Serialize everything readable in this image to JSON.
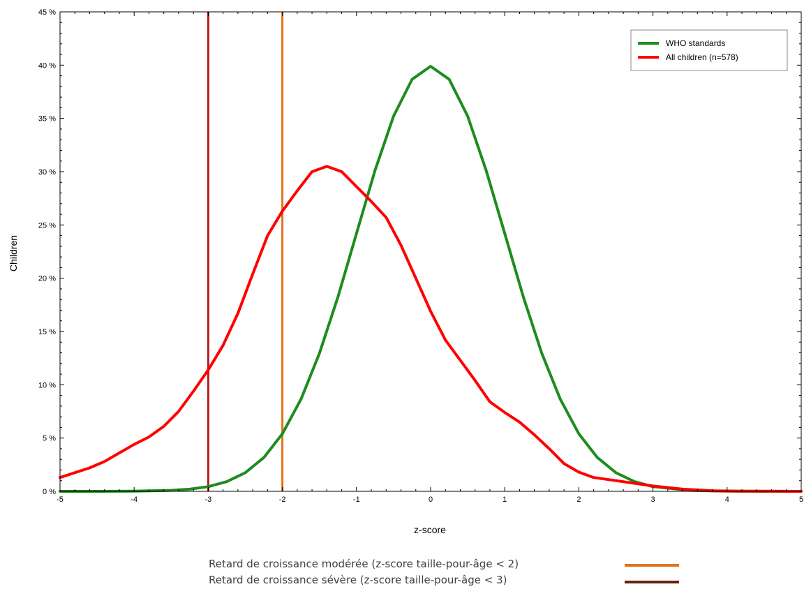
{
  "chart_data": {
    "type": "line",
    "xlabel": "z-score",
    "ylabel": "Children",
    "xlim": [
      -5,
      5
    ],
    "ylim": [
      0,
      45
    ],
    "x_ticks": [
      -5,
      -4,
      -3,
      -2,
      -1,
      0,
      1,
      2,
      3,
      4,
      5
    ],
    "y_ticks": [
      "0 %",
      "5 %",
      "10 %",
      "15 %",
      "20 %",
      "25 %",
      "30 %",
      "35 %",
      "40 %",
      "45 %"
    ],
    "y_tick_values": [
      0,
      5,
      10,
      15,
      20,
      25,
      30,
      35,
      40,
      45
    ],
    "grid": false,
    "legend_position": "top-right",
    "series": [
      {
        "name": "WHO standards",
        "color": "#1e8c1e",
        "x": [
          -5,
          -4.5,
          -4,
          -3.5,
          -3.25,
          -3,
          -2.75,
          -2.5,
          -2.25,
          -2,
          -1.75,
          -1.5,
          -1.25,
          -1,
          -0.75,
          -0.5,
          -0.25,
          0,
          0.25,
          0.5,
          0.75,
          1,
          1.25,
          1.5,
          1.75,
          2,
          2.25,
          2.5,
          2.75,
          3,
          3.5,
          4,
          4.5,
          5
        ],
        "y": [
          0,
          0,
          0.01,
          0.09,
          0.2,
          0.44,
          0.91,
          1.75,
          3.17,
          5.4,
          8.63,
          12.95,
          18.26,
          24.2,
          30.11,
          35.21,
          38.67,
          39.89,
          38.67,
          35.21,
          30.11,
          24.2,
          18.26,
          12.95,
          8.63,
          5.4,
          3.17,
          1.75,
          0.91,
          0.44,
          0.09,
          0.01,
          0,
          0
        ]
      },
      {
        "name": "All children (n=578)",
        "color": "#ff0000",
        "x": [
          -5,
          -4.6,
          -4.4,
          -4.2,
          -4,
          -3.8,
          -3.6,
          -3.4,
          -3.2,
          -3,
          -2.8,
          -2.6,
          -2.4,
          -2.2,
          -2,
          -1.8,
          -1.6,
          -1.4,
          -1.2,
          -1,
          -0.8,
          -0.6,
          -0.4,
          -0.2,
          0,
          0.2,
          0.4,
          0.6,
          0.8,
          1,
          1.2,
          1.4,
          1.6,
          1.8,
          2,
          2.2,
          2.5,
          2.8,
          3,
          3.4,
          3.8,
          4.2,
          4.6,
          5
        ],
        "y": [
          1.3,
          2.2,
          2.8,
          3.6,
          4.4,
          5.1,
          6.1,
          7.5,
          9.4,
          11.4,
          13.7,
          16.7,
          20.4,
          24,
          26.3,
          28.2,
          30,
          30.5,
          30,
          28.6,
          27.2,
          25.7,
          23.1,
          20,
          16.9,
          14.2,
          12.3,
          10.4,
          8.4,
          7.4,
          6.5,
          5.3,
          4,
          2.6,
          1.8,
          1.3,
          1,
          0.7,
          0.5,
          0.2,
          0.05,
          0.02,
          0.01,
          0
        ]
      }
    ],
    "vertical_lines": [
      {
        "x": -3,
        "color": "#bb1a1a"
      },
      {
        "x": -2,
        "color": "#e0731c"
      }
    ]
  },
  "notes": [
    {
      "text": "Retard de croissance modérée (z-score taille-pour-âge < 2)",
      "color": "#e0731c"
    },
    {
      "text": "Retard de croissance sévère (z-score taille-pour-âge < 3)",
      "color": "#6b2110"
    }
  ]
}
